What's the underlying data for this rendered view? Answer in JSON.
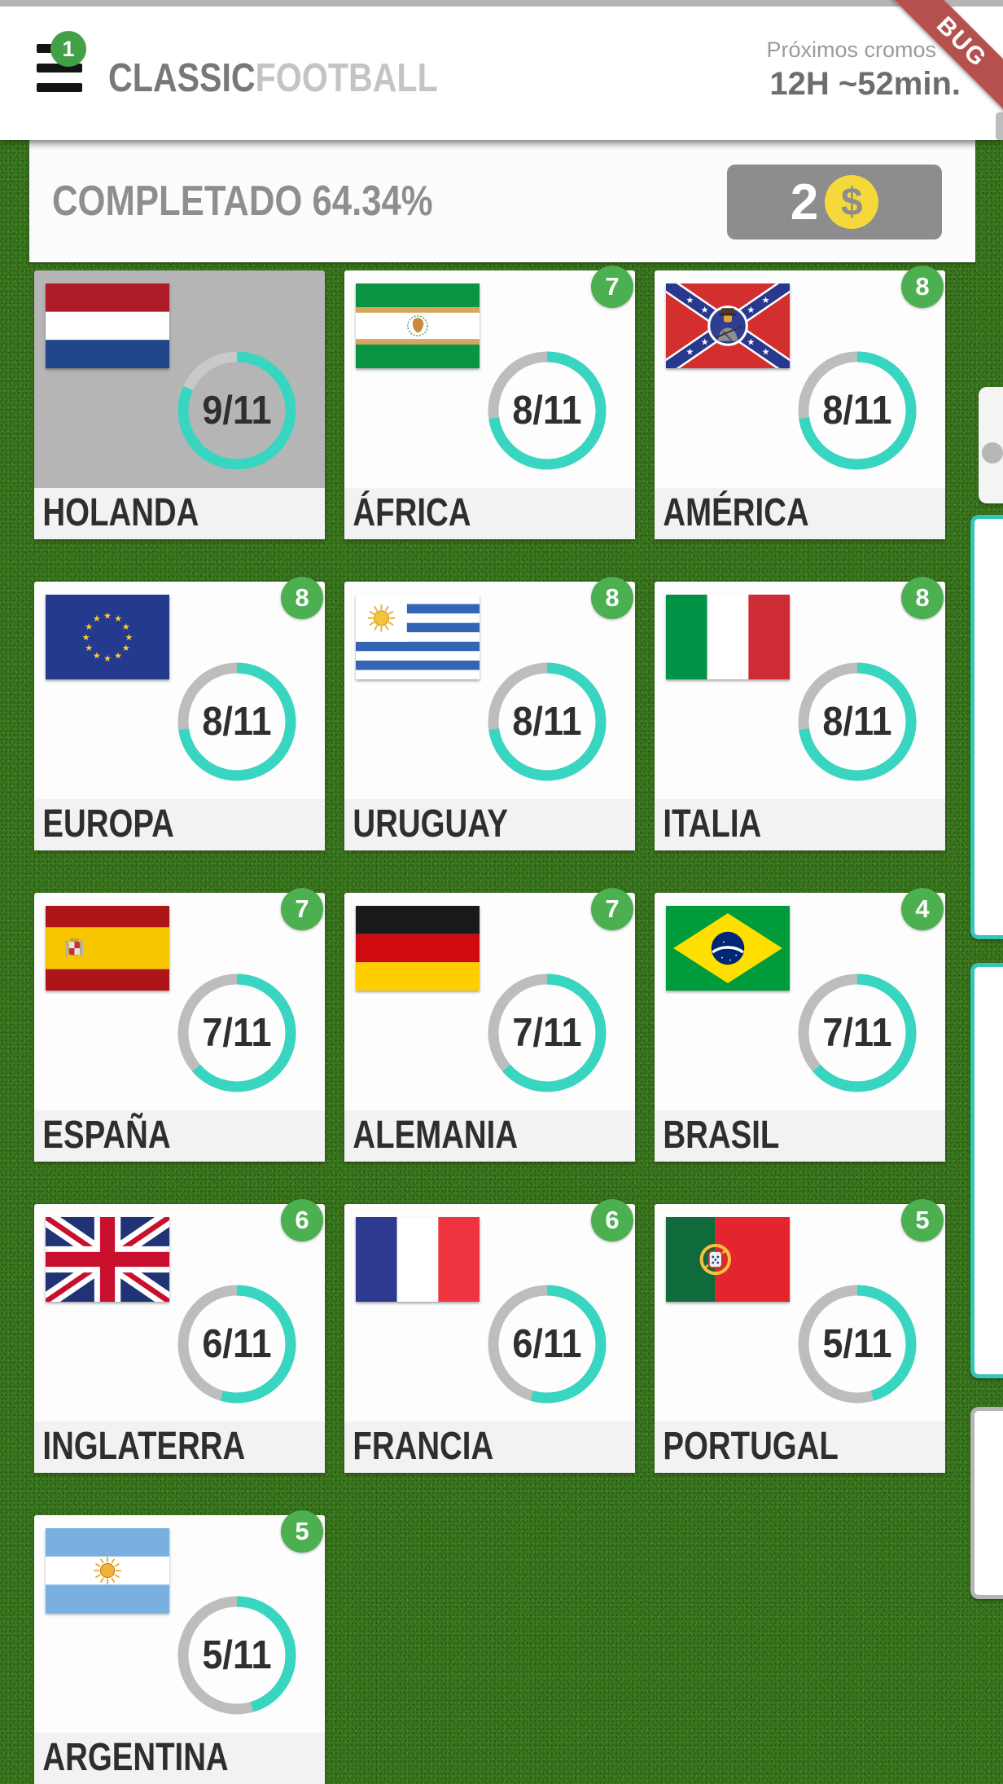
{
  "header": {
    "menu_badge": "1",
    "title_primary": "CLASSIC",
    "title_secondary": "FOOTBALL",
    "next_label": "Próximos cromos",
    "next_time": "12H ~52min.",
    "ribbon": "BUG"
  },
  "progress": {
    "completed": "COMPLETADO 64.34%",
    "coins": "2",
    "coin_symbol": "$"
  },
  "cards": [
    {
      "name": "HOLANDA",
      "count": "9/11",
      "have": 9,
      "total": 11,
      "badge": null,
      "selected": true,
      "flag": "netherlands"
    },
    {
      "name": "ÁFRICA",
      "count": "8/11",
      "have": 8,
      "total": 11,
      "badge": "7",
      "selected": false,
      "flag": "african-union"
    },
    {
      "name": "AMÉRICA",
      "count": "8/11",
      "have": 8,
      "total": 11,
      "badge": "8",
      "selected": false,
      "flag": "america"
    },
    {
      "name": "EUROPA",
      "count": "8/11",
      "have": 8,
      "total": 11,
      "badge": "8",
      "selected": false,
      "flag": "europe"
    },
    {
      "name": "URUGUAY",
      "count": "8/11",
      "have": 8,
      "total": 11,
      "badge": "8",
      "selected": false,
      "flag": "uruguay"
    },
    {
      "name": "ITALIA",
      "count": "8/11",
      "have": 8,
      "total": 11,
      "badge": "8",
      "selected": false,
      "flag": "italy"
    },
    {
      "name": "ESPAÑA",
      "count": "7/11",
      "have": 7,
      "total": 11,
      "badge": "7",
      "selected": false,
      "flag": "spain"
    },
    {
      "name": "ALEMANIA",
      "count": "7/11",
      "have": 7,
      "total": 11,
      "badge": "7",
      "selected": false,
      "flag": "germany"
    },
    {
      "name": "BRASIL",
      "count": "7/11",
      "have": 7,
      "total": 11,
      "badge": "4",
      "selected": false,
      "flag": "brazil"
    },
    {
      "name": "INGLATERRA",
      "count": "6/11",
      "have": 6,
      "total": 11,
      "badge": "6",
      "selected": false,
      "flag": "uk"
    },
    {
      "name": "FRANCIA",
      "count": "6/11",
      "have": 6,
      "total": 11,
      "badge": "6",
      "selected": false,
      "flag": "france"
    },
    {
      "name": "PORTUGAL",
      "count": "5/11",
      "have": 5,
      "total": 11,
      "badge": "5",
      "selected": false,
      "flag": "portugal"
    },
    {
      "name": "ARGENTINA",
      "count": "5/11",
      "have": 5,
      "total": 11,
      "badge": "5",
      "selected": false,
      "flag": "argentina"
    }
  ],
  "side_tabs": [
    {
      "style": "plain"
    },
    {
      "style": "teal"
    },
    {
      "style": "teal"
    },
    {
      "style": "gray"
    }
  ],
  "colors": {
    "accent_teal": "#38d5c0",
    "badge_green": "#4CAF50",
    "ribbon_red": "#b5514d",
    "coin_yellow": "#f5d93b",
    "grass_green": "#39771d",
    "selected_card_gray": "#b5b5b5"
  }
}
